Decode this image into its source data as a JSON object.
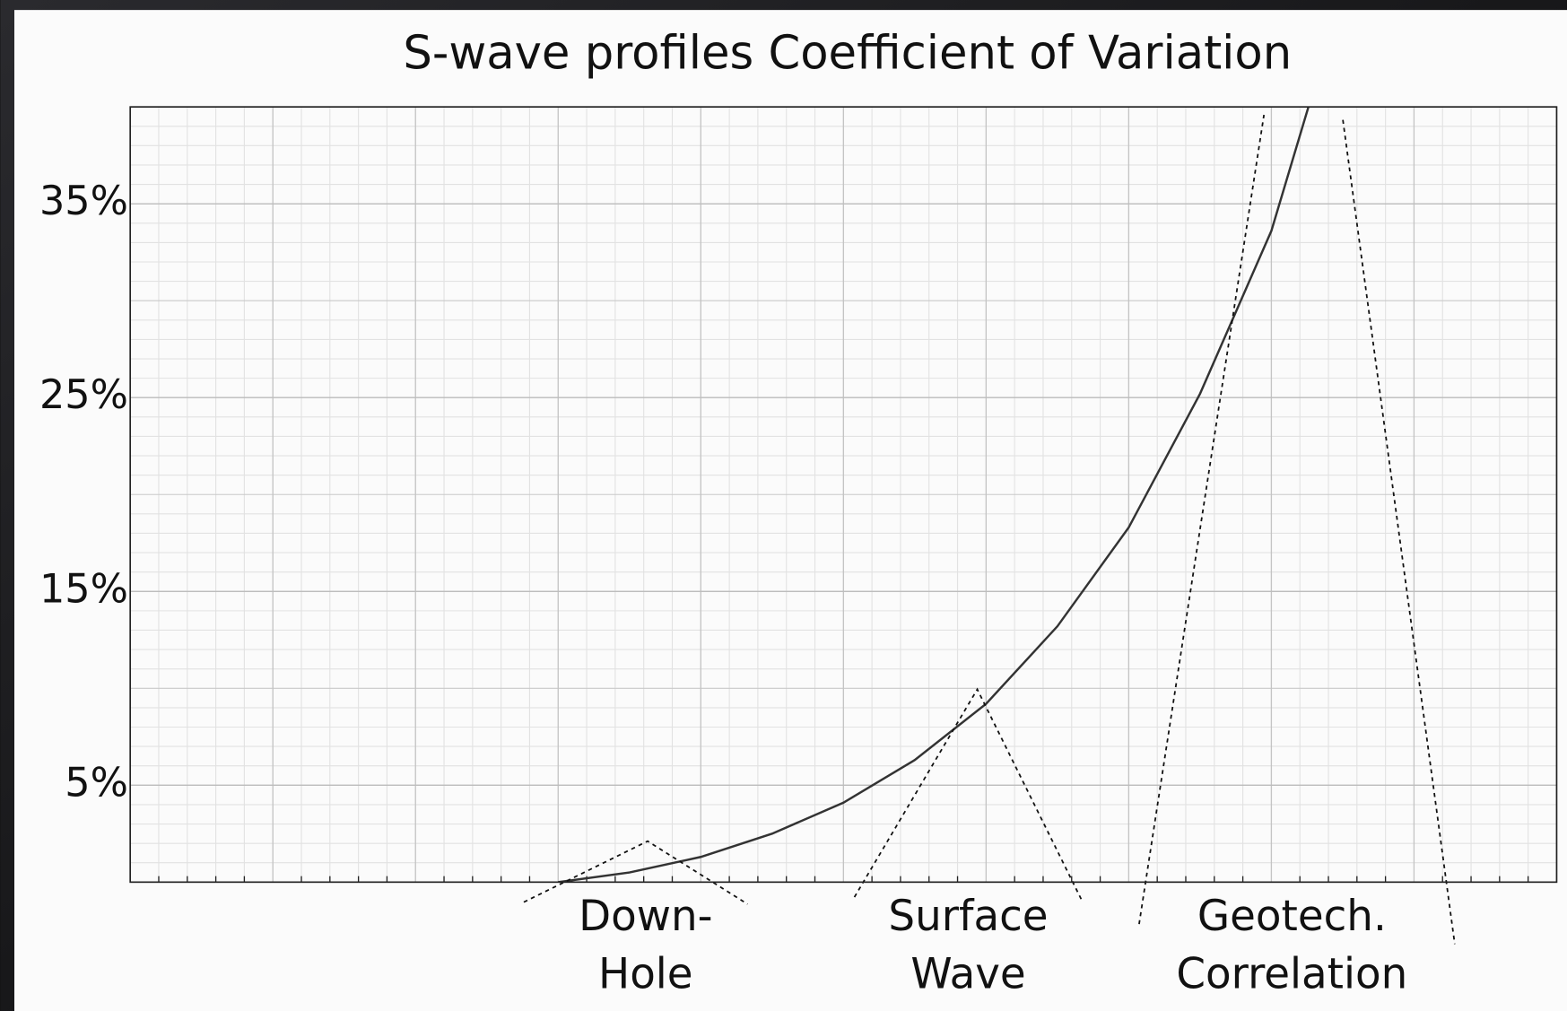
{
  "chart_data": {
    "type": "line",
    "title": "S-wave profiles Coefficient of Variation",
    "x": [
      3,
      3.5,
      4,
      4.5,
      5,
      5.5,
      6,
      6.5,
      7,
      7.5,
      8,
      8.26
    ],
    "values": [
      0,
      0.5,
      1.3,
      2.5,
      4.1,
      6.3,
      9.2,
      13.2,
      18.3,
      25.2,
      33.6,
      40
    ],
    "color": "#333333",
    "xlim": [
      0,
      10
    ],
    "xticks": [
      0,
      1,
      2,
      3,
      4,
      5,
      6,
      7,
      8,
      9,
      10
    ],
    "ylim": [
      0,
      40
    ],
    "yticks": [
      {
        "value": 5,
        "label": "5%"
      },
      {
        "value": 15,
        "label": "15%"
      },
      {
        "value": 25,
        "label": "25%"
      },
      {
        "value": 35,
        "label": "35%"
      }
    ],
    "grid": true,
    "annotations": [
      {
        "lines": [
          "Down-",
          "Hole"
        ]
      },
      {
        "lines": [
          "Surface",
          "Wave"
        ]
      },
      {
        "lines": [
          "Geotech.",
          "Correlation"
        ]
      }
    ]
  }
}
